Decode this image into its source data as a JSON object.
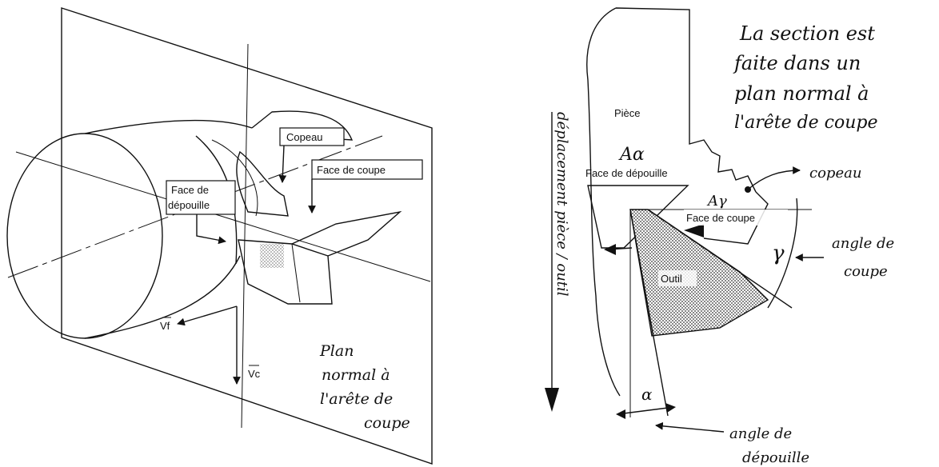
{
  "left": {
    "labels": {
      "copeau": "Copeau",
      "face_coupe": "Face de coupe",
      "face_depouille_1": "Face de",
      "face_depouille_2": "dépouille",
      "vf": "Vf",
      "vc": "Vc"
    },
    "handwritten": [
      "Plan",
      "normal à",
      "l'arête de",
      "coupe"
    ]
  },
  "right": {
    "labels": {
      "piece": "Pièce",
      "face_depouille": "Face de dépouille",
      "face_coupe": "Face de coupe",
      "outil": "Outil"
    },
    "handwritten": {
      "note": [
        "La section est",
        "faite dans un",
        "plan normal à",
        "l'arête de coupe"
      ],
      "a_alpha": "Aα",
      "a_gamma": "Aγ",
      "copeau": "copeau",
      "gamma": "γ",
      "alpha": "α",
      "angle_coupe": [
        "angle de",
        "coupe"
      ],
      "angle_depouille": [
        "angle de",
        "dépouille"
      ],
      "deplacement": "déplacement pièce / outil"
    }
  }
}
